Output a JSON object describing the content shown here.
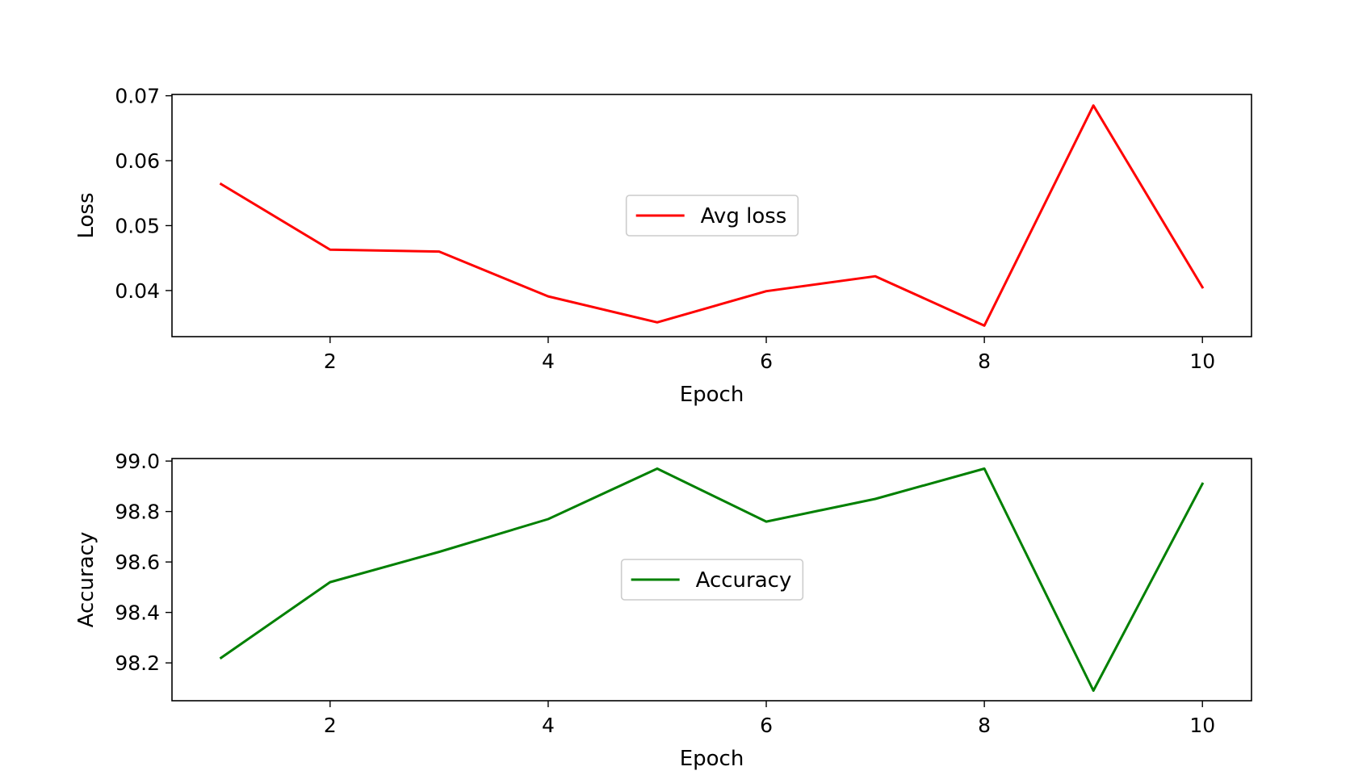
{
  "chart_data": [
    {
      "type": "line",
      "x": [
        1,
        2,
        3,
        4,
        5,
        6,
        7,
        8,
        9,
        10
      ],
      "series": [
        {
          "name": "Avg loss",
          "color": "#ff0000",
          "values": [
            0.0564,
            0.0463,
            0.046,
            0.0391,
            0.0351,
            0.0399,
            0.0422,
            0.0346,
            0.0685,
            0.0405
          ]
        }
      ],
      "xlabel": "Epoch",
      "ylabel": "Loss",
      "xlim": [
        0.55,
        10.45
      ],
      "ylim": [
        0.0329,
        0.0702
      ],
      "xticks": [
        2,
        4,
        6,
        8,
        10
      ],
      "yticks": [
        0.04,
        0.05,
        0.06,
        0.07
      ],
      "ytick_labels": [
        "0.04",
        "0.05",
        "0.06",
        "0.07"
      ],
      "legend": "center",
      "grid": false
    },
    {
      "type": "line",
      "x": [
        1,
        2,
        3,
        4,
        5,
        6,
        7,
        8,
        9,
        10
      ],
      "series": [
        {
          "name": "Accuracy",
          "color": "#008000",
          "values": [
            98.22,
            98.52,
            98.64,
            98.77,
            98.97,
            98.76,
            98.85,
            98.97,
            98.09,
            98.91
          ]
        }
      ],
      "xlabel": "Epoch",
      "ylabel": "Accuracy",
      "xlim": [
        0.55,
        10.45
      ],
      "ylim": [
        98.05,
        99.01
      ],
      "xticks": [
        2,
        4,
        6,
        8,
        10
      ],
      "yticks": [
        98.2,
        98.4,
        98.6,
        98.8,
        99.0
      ],
      "ytick_labels": [
        "98.2",
        "98.4",
        "98.6",
        "98.8",
        "99.0"
      ],
      "legend": "center",
      "grid": false
    }
  ]
}
